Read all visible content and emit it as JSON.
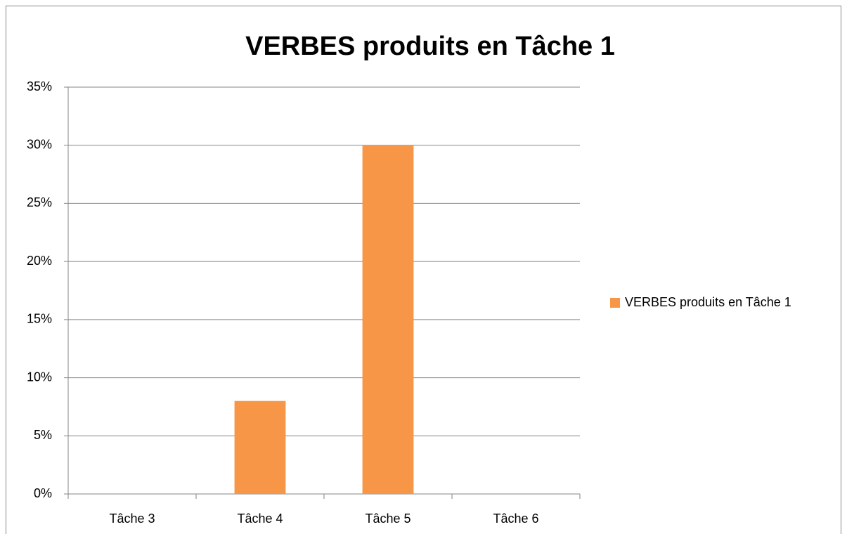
{
  "chart_data": {
    "type": "bar",
    "title": "VERBES produits en Tâche 1",
    "categories": [
      "Tâche 3",
      "Tâche 4",
      "Tâche 5",
      "Tâche 6"
    ],
    "series": [
      {
        "name": "VERBES produits en Tâche 1",
        "color": "#f79646",
        "values": [
          0,
          8,
          30,
          0
        ]
      }
    ],
    "ylim": [
      0,
      35
    ],
    "yticks": [
      {
        "value": 0,
        "label": "0%"
      },
      {
        "value": 5,
        "label": "5%"
      },
      {
        "value": 10,
        "label": "10%"
      },
      {
        "value": 15,
        "label": "15%"
      },
      {
        "value": 20,
        "label": "20%"
      },
      {
        "value": 25,
        "label": "25%"
      },
      {
        "value": 30,
        "label": "30%"
      },
      {
        "value": 35,
        "label": "35%"
      }
    ],
    "grid": true,
    "legend": "right"
  }
}
